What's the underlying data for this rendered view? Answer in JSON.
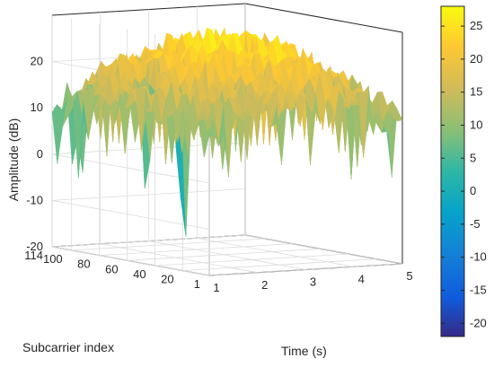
{
  "chart_data": {
    "type": "surface",
    "xlabel": "Time (s)",
    "ylabel": "Subcarrier index",
    "zlabel": "Amplitude (dB)",
    "x_ticks": [
      "1",
      "2",
      "3",
      "4",
      "5"
    ],
    "y_ticks": [
      "1",
      "20",
      "40",
      "60",
      "80",
      "100",
      "114"
    ],
    "z_ticks": [
      "-20",
      "-10",
      "0",
      "10",
      "20"
    ],
    "xlim": [
      1,
      5
    ],
    "ylim": [
      1,
      114
    ],
    "zlim": [
      -20,
      30
    ],
    "grid": true,
    "colormap": "parula",
    "colorbar": {
      "ticks": [
        "-20",
        "-15",
        "-10",
        "-5",
        "0",
        "5",
        "10",
        "15",
        "20",
        "25"
      ],
      "range": [
        -22,
        28
      ],
      "placement": "right"
    },
    "surface_profile": {
      "time_samples": [
        1,
        1.5,
        2,
        2.5,
        3,
        3.5,
        4,
        4.5,
        5
      ],
      "subcarrier_samples": [
        1,
        20,
        40,
        60,
        80,
        100,
        114
      ],
      "approx_amplitude": [
        [
          12,
          14,
          15,
          16,
          17,
          18,
          17,
          14,
          11
        ],
        [
          13,
          16,
          18,
          19,
          20,
          21,
          19,
          16,
          12
        ],
        [
          14,
          17,
          20,
          22,
          23,
          24,
          22,
          18,
          14
        ],
        [
          15,
          18,
          21,
          24,
          25,
          25,
          23,
          20,
          16
        ],
        [
          14,
          18,
          21,
          23,
          24,
          24,
          22,
          19,
          15
        ],
        [
          12,
          15,
          18,
          20,
          21,
          21,
          19,
          16,
          13
        ],
        [
          10,
          13,
          15,
          17,
          18,
          18,
          16,
          14,
          12
        ]
      ],
      "deep_fades": [
        {
          "time": 1.6,
          "subcarrier": 40,
          "amplitude": -18
        },
        {
          "time": 1.4,
          "subcarrier": 60,
          "amplitude": -8
        },
        {
          "time": 1.2,
          "subcarrier": 100,
          "amplitude": -5
        },
        {
          "time": 1.0,
          "subcarrier": 110,
          "amplitude": -2
        }
      ]
    }
  }
}
